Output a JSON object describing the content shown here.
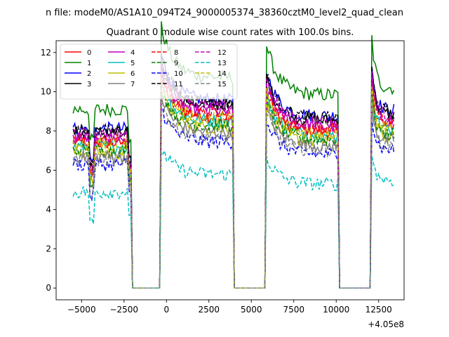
{
  "chart_data": {
    "type": "line",
    "suptitle": "n file: modeM0/AS1A10_094T24_9000005374_38360cztM0_level2_quad_clean",
    "title": "Quadrant 0 module wise count rates with 100.0s bins.",
    "xlabel": "",
    "ylabel": "",
    "x_offset_label": "+4.05e8",
    "xlim": [
      -6500,
      14000
    ],
    "ylim": [
      -0.6,
      12.6
    ],
    "x_ticks": [
      -5000,
      -2500,
      0,
      2500,
      5000,
      7500,
      10000,
      12500
    ],
    "x_tick_labels": [
      "−5000",
      "−2500",
      "0",
      "2500",
      "5000",
      "7500",
      "10000",
      "12500"
    ],
    "y_ticks": [
      0,
      2,
      4,
      6,
      8,
      10,
      12
    ],
    "y_tick_labels": [
      "0",
      "2",
      "4",
      "6",
      "8",
      "10",
      "12"
    ],
    "gti_segments": [
      [
        -5500,
        -2100
      ],
      [
        -300,
        3900
      ],
      [
        5900,
        10100
      ],
      [
        12100,
        13400
      ]
    ],
    "legend_location": "upper-left",
    "legend_ncol": 4,
    "series": [
      {
        "name": "0",
        "color": "#ff0000",
        "dash": "solid",
        "level": 7.4
      },
      {
        "name": "1",
        "color": "#008000",
        "dash": "solid",
        "level": 9.1
      },
      {
        "name": "2",
        "color": "#0000ff",
        "dash": "solid",
        "level": 8.1
      },
      {
        "name": "3",
        "color": "#000000",
        "dash": "solid",
        "level": 7.9
      },
      {
        "name": "4",
        "color": "#bf00bf",
        "dash": "solid",
        "level": 7.6
      },
      {
        "name": "5",
        "color": "#00bfbf",
        "dash": "solid",
        "level": 7.2
      },
      {
        "name": "6",
        "color": "#bfbf00",
        "dash": "solid",
        "level": 6.9
      },
      {
        "name": "7",
        "color": "#808080",
        "dash": "solid",
        "level": 6.7
      },
      {
        "name": "8",
        "color": "#ff0000",
        "dash": "dashed",
        "level": 7.5
      },
      {
        "name": "9",
        "color": "#008000",
        "dash": "dashed",
        "level": 7.0
      },
      {
        "name": "10",
        "color": "#0000ff",
        "dash": "dashed",
        "level": 6.3
      },
      {
        "name": "11",
        "color": "#000000",
        "dash": "dashed",
        "level": 8.0
      },
      {
        "name": "12",
        "color": "#bf00bf",
        "dash": "dashed",
        "level": 7.8
      },
      {
        "name": "13",
        "color": "#00bfbf",
        "dash": "dashed",
        "level": 4.9
      },
      {
        "name": "14",
        "color": "#bfbf00",
        "dash": "dashed",
        "level": 7.3
      },
      {
        "name": "15",
        "color": "#808080",
        "dash": "dashed",
        "level": 6.5
      }
    ]
  }
}
